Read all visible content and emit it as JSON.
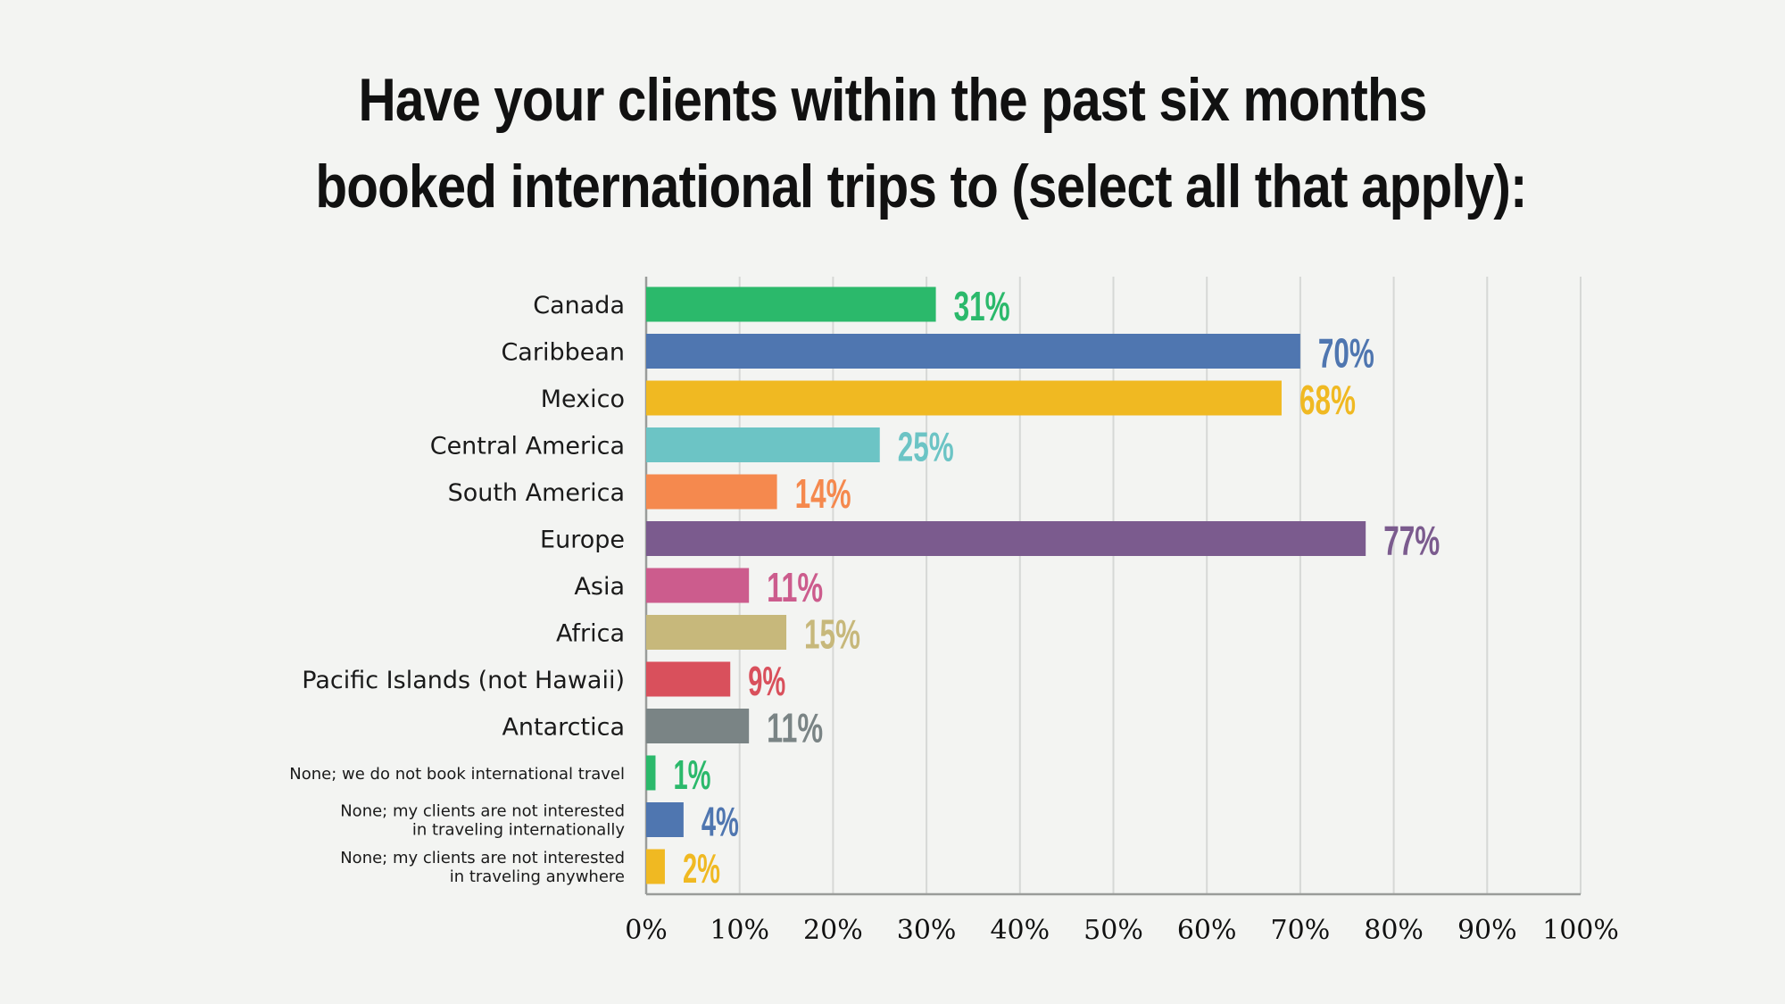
{
  "title": {
    "line1": "Have your clients within the past six months",
    "line2": "booked international trips to (select all that apply):"
  },
  "chart_data": {
    "type": "bar",
    "orientation": "horizontal",
    "title": "Have your clients within the past six months booked international trips to (select all that apply):",
    "categories": [
      [
        "Canada"
      ],
      [
        "Caribbean"
      ],
      [
        "Mexico"
      ],
      [
        "Central America"
      ],
      [
        "South America"
      ],
      [
        "Europe"
      ],
      [
        "Asia"
      ],
      [
        "Africa"
      ],
      [
        "Pacific Islands (not Hawaii)"
      ],
      [
        "Antarctica"
      ],
      [
        "None; we do not book international travel"
      ],
      [
        "None; my clients are not interested",
        "in traveling internationally"
      ],
      [
        "None; my clients are not interested",
        "in traveling anywhere"
      ]
    ],
    "values": [
      31,
      70,
      68,
      25,
      14,
      77,
      11,
      15,
      9,
      11,
      1,
      4,
      2
    ],
    "value_labels": [
      "31%",
      "70%",
      "68%",
      "25%",
      "14%",
      "77%",
      "11%",
      "15%",
      "9%",
      "11%",
      "1%",
      "4%",
      "2%"
    ],
    "colors": [
      "#2bb96b",
      "#4f76b0",
      "#f0b922",
      "#6cc4c5",
      "#f5894e",
      "#7b5b8e",
      "#cc5c8d",
      "#c7b87b",
      "#d9505c",
      "#7a8485",
      "#2bb96b",
      "#4f76b0",
      "#f0b922"
    ],
    "xlim": [
      0,
      100
    ],
    "xticks": [
      "0%",
      "10%",
      "20%",
      "30%",
      "40%",
      "50%",
      "60%",
      "70%",
      "80%",
      "90%",
      "100%"
    ],
    "grid": true,
    "legend": "none",
    "xlabel": "",
    "ylabel": ""
  }
}
